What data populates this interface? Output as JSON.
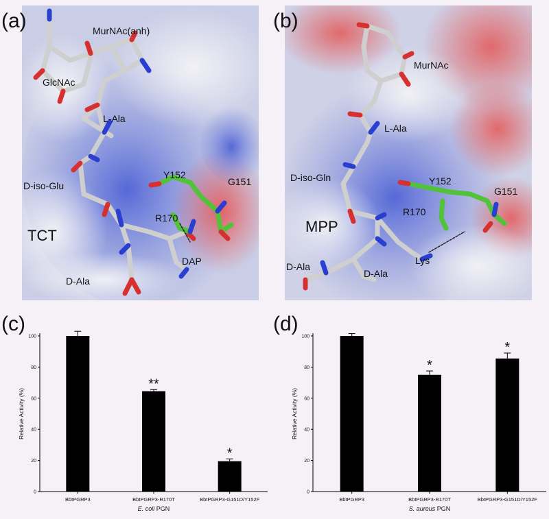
{
  "panels": {
    "a": {
      "letter": "(a)",
      "labels": {
        "murnac": "MurNAc(anh)",
        "glcnac": "GlcNAc",
        "lala": "L-Ala",
        "disoglu": "D-iso-Glu",
        "tct": "TCT",
        "y152": "Y152",
        "g151": "G151",
        "r170": "R170",
        "dap": "DAP",
        "dala": "D-Ala"
      }
    },
    "b": {
      "letter": "(b)",
      "labels": {
        "murnac": "MurNAc",
        "lala": "L-Ala",
        "disogln": "D-iso-Gln",
        "mpp": "MPP",
        "y152": "Y152",
        "g151": "G151",
        "r170": "R170",
        "lys": "Lys",
        "dala1": "D-Ala",
        "dala2": "D-Ala"
      }
    },
    "c": {
      "letter": "(c)"
    },
    "d": {
      "letter": "(d)"
    }
  },
  "chart_data": [
    {
      "panel": "c",
      "type": "bar",
      "categories": [
        "BbtPGRP3",
        "BbtPGRP3-R170T",
        "BbtPGRP3-G151D/Y152F"
      ],
      "values": [
        100,
        64.5,
        19.5
      ],
      "errors": [
        3,
        1,
        1.5
      ],
      "significance": [
        "",
        "**",
        "*"
      ],
      "ylabel": "Relative Activity (%)",
      "xlabel_italic": "E. coli",
      "xlabel_rest": " PGN",
      "ylim": [
        0,
        100
      ],
      "yticks": [
        0,
        20,
        40,
        60,
        80,
        100
      ]
    },
    {
      "panel": "d",
      "type": "bar",
      "categories": [
        "BbtPGRP3",
        "BbtPGRP3-R170T",
        "BbtPGRP3-G151D/Y152F"
      ],
      "values": [
        100,
        75,
        85.5
      ],
      "errors": [
        1.5,
        2.5,
        3.5
      ],
      "significance": [
        "",
        "*",
        "*"
      ],
      "ylabel": "Relative Activity (%)",
      "xlabel_italic": "S. aureus",
      "xlabel_rest": " PGN",
      "ylim": [
        0,
        100
      ],
      "yticks": [
        0,
        20,
        40,
        60,
        80,
        100
      ]
    }
  ],
  "colors": {
    "surface_blue": "#5a6fd8",
    "surface_red": "#e06c6c",
    "surface_white": "#eceef3",
    "stick_carbon": "#c8c8c8",
    "stick_oxygen": "#d63030",
    "stick_nitrogen": "#2a3fd0",
    "stick_green": "#52c23a",
    "bar": "#000000"
  }
}
